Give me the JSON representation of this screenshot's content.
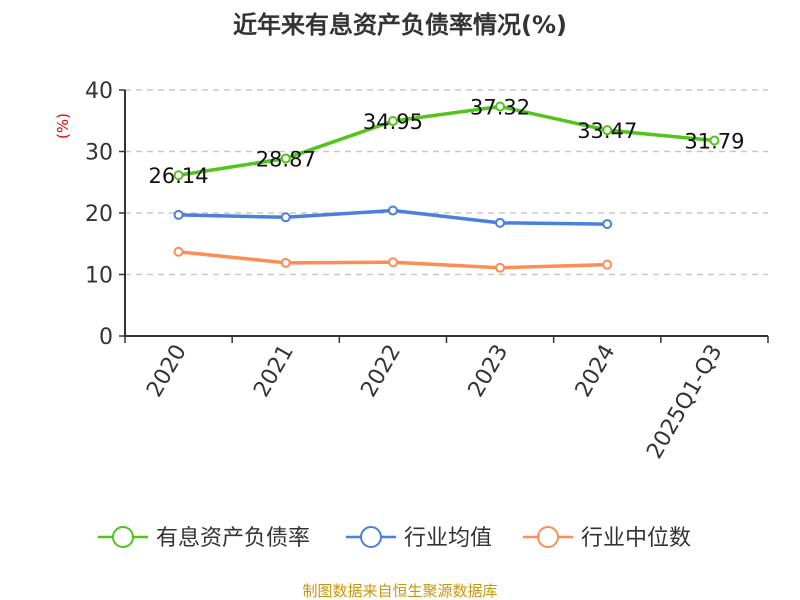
{
  "chart_data": {
    "type": "line",
    "title": "近年来有息资产负债率情况(%)",
    "ylabel": "(%)",
    "ylim": [
      0,
      40
    ],
    "yticks": [
      0,
      10,
      20,
      30,
      40
    ],
    "grid": true,
    "legend_position": "bottom",
    "categories": [
      "2020",
      "2021",
      "2022",
      "2023",
      "2024",
      "2025Q1-Q3"
    ],
    "series": [
      {
        "name": "有息资产负债率",
        "color": "#52c41a",
        "values": [
          26.14,
          28.87,
          34.95,
          37.32,
          33.47,
          31.79
        ],
        "labels": [
          "26.14",
          "28.87",
          "34.95",
          "37.32",
          "33.47",
          "31.79"
        ]
      },
      {
        "name": "行业均值",
        "color": "#4a7fdc",
        "values": [
          19.7,
          19.3,
          20.4,
          18.4,
          18.2,
          null
        ]
      },
      {
        "name": "行业中位数",
        "color": "#ff8c55",
        "values": [
          13.7,
          11.9,
          12.0,
          11.1,
          11.6,
          null
        ]
      }
    ]
  },
  "footer": {
    "source": "制图数据来自恒生聚源数据库",
    "color": "#c8960a"
  }
}
